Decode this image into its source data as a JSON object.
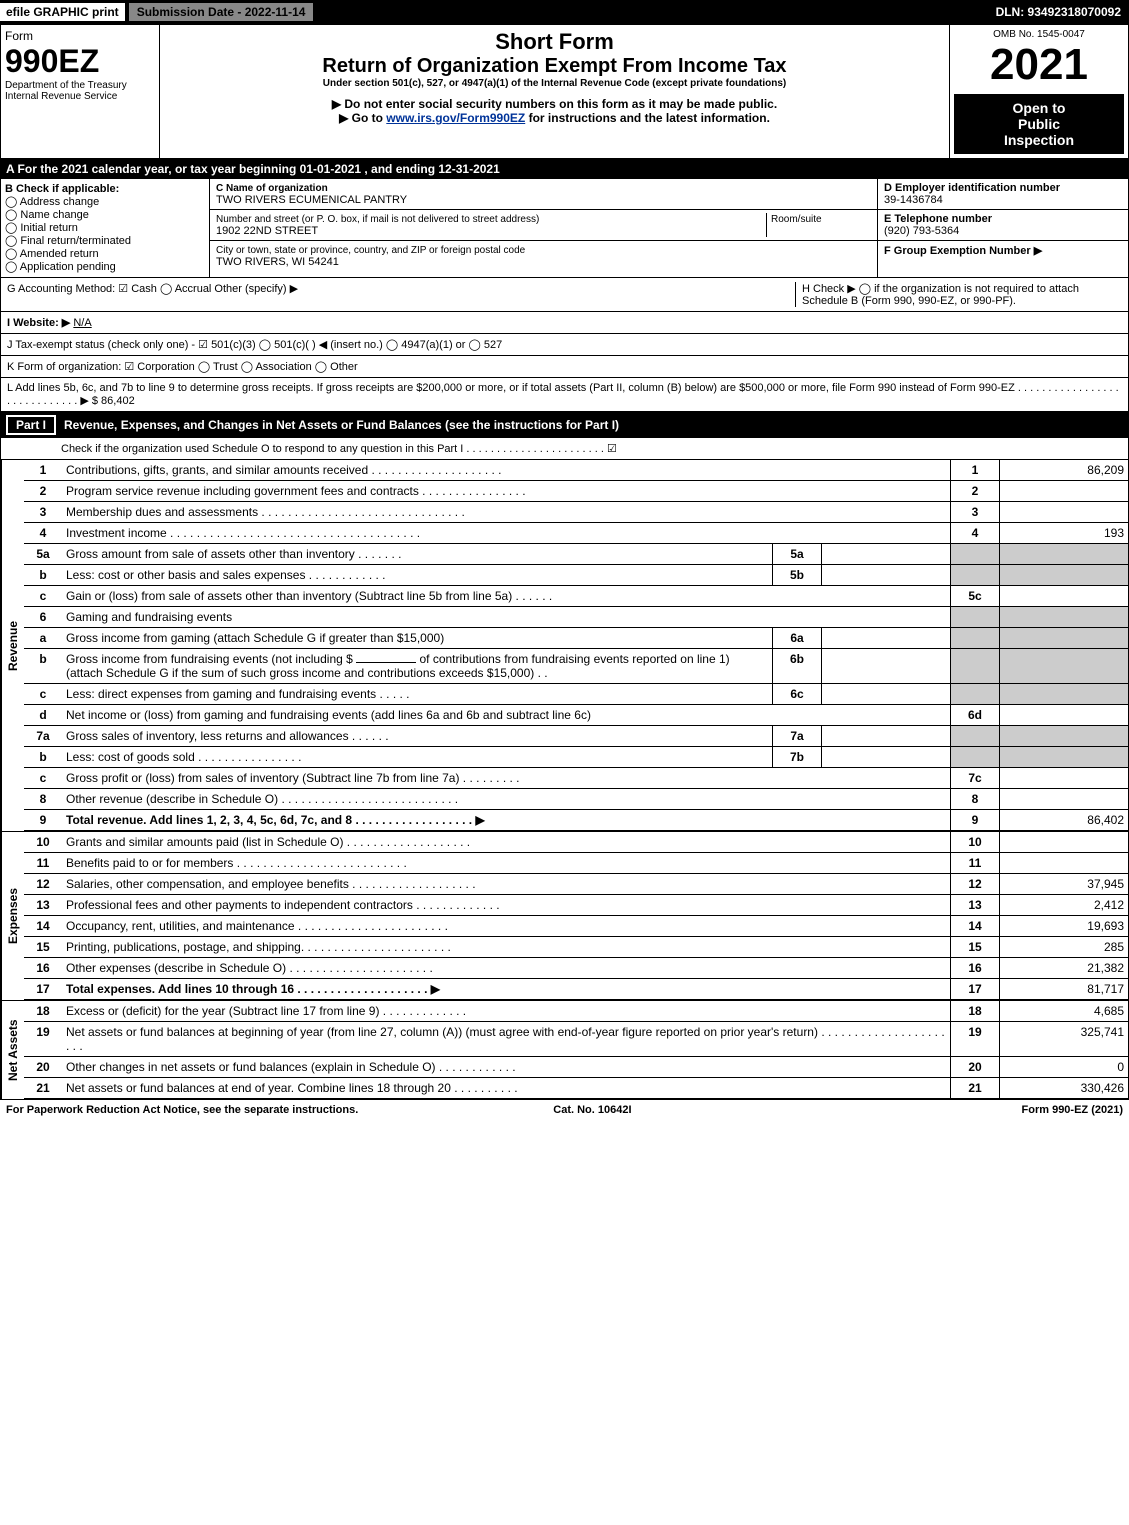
{
  "top": {
    "efile": "efile GRAPHIC print",
    "submission": "Submission Date - 2022-11-14",
    "dln": "DLN: 93492318070092"
  },
  "header": {
    "form_label": "Form",
    "form_number": "990EZ",
    "dept1": "Department of the Treasury",
    "dept2": "Internal Revenue Service",
    "title1": "Short Form",
    "title2": "Return of Organization Exempt From Income Tax",
    "subtitle": "Under section 501(c), 527, or 4947(a)(1) of the Internal Revenue Code (except private foundations)",
    "note1": "▶ Do not enter social security numbers on this form as it may be made public.",
    "note2_pre": "▶ Go to ",
    "note2_link": "www.irs.gov/Form990EZ",
    "note2_post": " for instructions and the latest information.",
    "omb": "OMB No. 1545-0047",
    "year": "2021",
    "open1": "Open to",
    "open2": "Public",
    "open3": "Inspection"
  },
  "sectionA": "A  For the 2021 calendar year, or tax year beginning 01-01-2021 , and ending 12-31-2021",
  "boxB": {
    "title": "B  Check if applicable:",
    "opts": [
      "Address change",
      "Name change",
      "Initial return",
      "Final return/terminated",
      "Amended return",
      "Application pending"
    ]
  },
  "boxC": {
    "label": "C Name of organization",
    "name": "TWO RIVERS ECUMENICAL PANTRY",
    "street_label": "Number and street (or P. O. box, if mail is not delivered to street address)",
    "room_label": "Room/suite",
    "street": "1902 22ND STREET",
    "city_label": "City or town, state or province, country, and ZIP or foreign postal code",
    "city": "TWO RIVERS, WI  54241"
  },
  "boxD": {
    "label": "D Employer identification number",
    "value": "39-1436784"
  },
  "boxE": {
    "label": "E Telephone number",
    "value": "(920) 793-5364"
  },
  "boxF": {
    "label": "F Group Exemption Number  ▶"
  },
  "boxG": "G Accounting Method:   ☑ Cash  ◯ Accrual   Other (specify) ▶",
  "boxH": "H  Check ▶  ◯  if the organization is not required to attach Schedule B (Form 990, 990-EZ, or 990-PF).",
  "boxI": {
    "label": "I Website: ▶",
    "value": "N/A"
  },
  "boxJ": "J Tax-exempt status (check only one) -  ☑ 501(c)(3) ◯ 501(c)(  ) ◀ (insert no.) ◯ 4947(a)(1) or ◯ 527",
  "boxK": "K Form of organization:   ☑ Corporation  ◯ Trust  ◯ Association  ◯ Other",
  "boxL": {
    "text": "L Add lines 5b, 6c, and 7b to line 9 to determine gross receipts. If gross receipts are $200,000 or more, or if total assets (Part II, column (B) below) are $500,000 or more, file Form 990 instead of Form 990-EZ  .  .  .  .  .  .  .  .  .  .  .  .  .  .  .  .  .  .  .  .  .  .  .  .  .  .  .  .  .  ▶ $",
    "amount": "86,402"
  },
  "part1": {
    "label": "Part I",
    "title": "Revenue, Expenses, and Changes in Net Assets or Fund Balances (see the instructions for Part I)",
    "check_note": "Check if the organization used Schedule O to respond to any question in this Part I  .  .  .  .  .  .  .  .  .  .  .  .  .  .  .  .  .  .  .  .  .  .  .  ☑"
  },
  "revenue_label": "Revenue",
  "expenses_label": "Expenses",
  "netassets_label": "Net Assets",
  "lines": {
    "1": {
      "num": "1",
      "desc": "Contributions, gifts, grants, and similar amounts received  .  .  .  .  .  .  .  .  .  .  .  .  .  .  .  .  .  .  .  .",
      "box": "1",
      "amt": "86,209"
    },
    "2": {
      "num": "2",
      "desc": "Program service revenue including government fees and contracts  .  .  .  .  .  .  .  .  .  .  .  .  .  .  .  .",
      "box": "2",
      "amt": ""
    },
    "3": {
      "num": "3",
      "desc": "Membership dues and assessments  .  .  .  .  .  .  .  .  .  .  .  .  .  .  .  .  .  .  .  .  .  .  .  .  .  .  .  .  .  .  .",
      "box": "3",
      "amt": ""
    },
    "4": {
      "num": "4",
      "desc": "Investment income  .  .  .  .  .  .  .  .  .  .  .  .  .  .  .  .  .  .  .  .  .  .  .  .  .  .  .  .  .  .  .  .  .  .  .  .  .  .",
      "box": "4",
      "amt": "193"
    },
    "5a": {
      "num": "5a",
      "desc": "Gross amount from sale of assets other than inventory  .  .  .  .  .  .  .",
      "sub": "5a"
    },
    "5b": {
      "num": "b",
      "desc": "Less: cost or other basis and sales expenses  .  .  .  .  .  .  .  .  .  .  .  .",
      "sub": "5b"
    },
    "5c": {
      "num": "c",
      "desc": "Gain or (loss) from sale of assets other than inventory (Subtract line 5b from line 5a)  .  .  .  .  .  .",
      "box": "5c",
      "amt": ""
    },
    "6": {
      "num": "6",
      "desc": "Gaming and fundraising events"
    },
    "6a": {
      "num": "a",
      "desc": "Gross income from gaming (attach Schedule G if greater than $15,000)",
      "sub": "6a"
    },
    "6b": {
      "num": "b",
      "desc_pre": "Gross income from fundraising events (not including $",
      "desc_mid": "of contributions from fundraising events reported on line 1) (attach Schedule G if the sum of such gross income and contributions exceeds $15,000)   .  .",
      "sub": "6b"
    },
    "6c": {
      "num": "c",
      "desc": "Less: direct expenses from gaming and fundraising events  .  .  .  .  .",
      "sub": "6c"
    },
    "6d": {
      "num": "d",
      "desc": "Net income or (loss) from gaming and fundraising events (add lines 6a and 6b and subtract line 6c)",
      "box": "6d",
      "amt": ""
    },
    "7a": {
      "num": "7a",
      "desc": "Gross sales of inventory, less returns and allowances  .  .  .  .  .  .",
      "sub": "7a"
    },
    "7b": {
      "num": "b",
      "desc": "Less: cost of goods sold       .  .  .  .  .  .  .  .  .  .  .  .  .  .  .  .",
      "sub": "7b"
    },
    "7c": {
      "num": "c",
      "desc": "Gross profit or (loss) from sales of inventory (Subtract line 7b from line 7a)  .  .  .  .  .  .  .  .  .",
      "box": "7c",
      "amt": ""
    },
    "8": {
      "num": "8",
      "desc": "Other revenue (describe in Schedule O)  .  .  .  .  .  .  .  .  .  .  .  .  .  .  .  .  .  .  .  .  .  .  .  .  .  .  .",
      "box": "8",
      "amt": ""
    },
    "9": {
      "num": "9",
      "desc": "Total revenue. Add lines 1, 2, 3, 4, 5c, 6d, 7c, and 8   .  .  .  .  .  .  .  .  .  .  .  .  .  .  .  .  .  .  ▶",
      "box": "9",
      "amt": "86,402",
      "bold": true
    },
    "10": {
      "num": "10",
      "desc": "Grants and similar amounts paid (list in Schedule O)  .  .  .  .  .  .  .  .  .  .  .  .  .  .  .  .  .  .  .",
      "box": "10",
      "amt": ""
    },
    "11": {
      "num": "11",
      "desc": "Benefits paid to or for members      .  .  .  .  .  .  .  .  .  .  .  .  .  .  .  .  .  .  .  .  .  .  .  .  .  .",
      "box": "11",
      "amt": ""
    },
    "12": {
      "num": "12",
      "desc": "Salaries, other compensation, and employee benefits  .  .  .  .  .  .  .  .  .  .  .  .  .  .  .  .  .  .  .",
      "box": "12",
      "amt": "37,945"
    },
    "13": {
      "num": "13",
      "desc": "Professional fees and other payments to independent contractors  .  .  .  .  .  .  .  .  .  .  .  .  .",
      "box": "13",
      "amt": "2,412"
    },
    "14": {
      "num": "14",
      "desc": "Occupancy, rent, utilities, and maintenance  .  .  .  .  .  .  .  .  .  .  .  .  .  .  .  .  .  .  .  .  .  .  .",
      "box": "14",
      "amt": "19,693"
    },
    "15": {
      "num": "15",
      "desc": "Printing, publications, postage, and shipping.  .  .  .  .  .  .  .  .  .  .  .  .  .  .  .  .  .  .  .  .  .  .",
      "box": "15",
      "amt": "285"
    },
    "16": {
      "num": "16",
      "desc": "Other expenses (describe in Schedule O)      .  .  .  .  .  .  .  .  .  .  .  .  .  .  .  .  .  .  .  .  .  .",
      "box": "16",
      "amt": "21,382"
    },
    "17": {
      "num": "17",
      "desc": "Total expenses. Add lines 10 through 16     .  .  .  .  .  .  .  .  .  .  .  .  .  .  .  .  .  .  .  .  ▶",
      "box": "17",
      "amt": "81,717",
      "bold": true
    },
    "18": {
      "num": "18",
      "desc": "Excess or (deficit) for the year (Subtract line 17 from line 9)       .  .  .  .  .  .  .  .  .  .  .  .  .",
      "box": "18",
      "amt": "4,685"
    },
    "19": {
      "num": "19",
      "desc": "Net assets or fund balances at beginning of year (from line 27, column (A)) (must agree with end-of-year figure reported on prior year's return)  .  .  .  .  .  .  .  .  .  .  .  .  .  .  .  .  .  .  .  .  .  .",
      "box": "19",
      "amt": "325,741"
    },
    "20": {
      "num": "20",
      "desc": "Other changes in net assets or fund balances (explain in Schedule O)  .  .  .  .  .  .  .  .  .  .  .  .",
      "box": "20",
      "amt": "0"
    },
    "21": {
      "num": "21",
      "desc": "Net assets or fund balances at end of year. Combine lines 18 through 20  .  .  .  .  .  .  .  .  .  .",
      "box": "21",
      "amt": "330,426"
    }
  },
  "footer": {
    "left": "For Paperwork Reduction Act Notice, see the separate instructions.",
    "center": "Cat. No. 10642I",
    "right": "Form 990-EZ (2021)"
  }
}
